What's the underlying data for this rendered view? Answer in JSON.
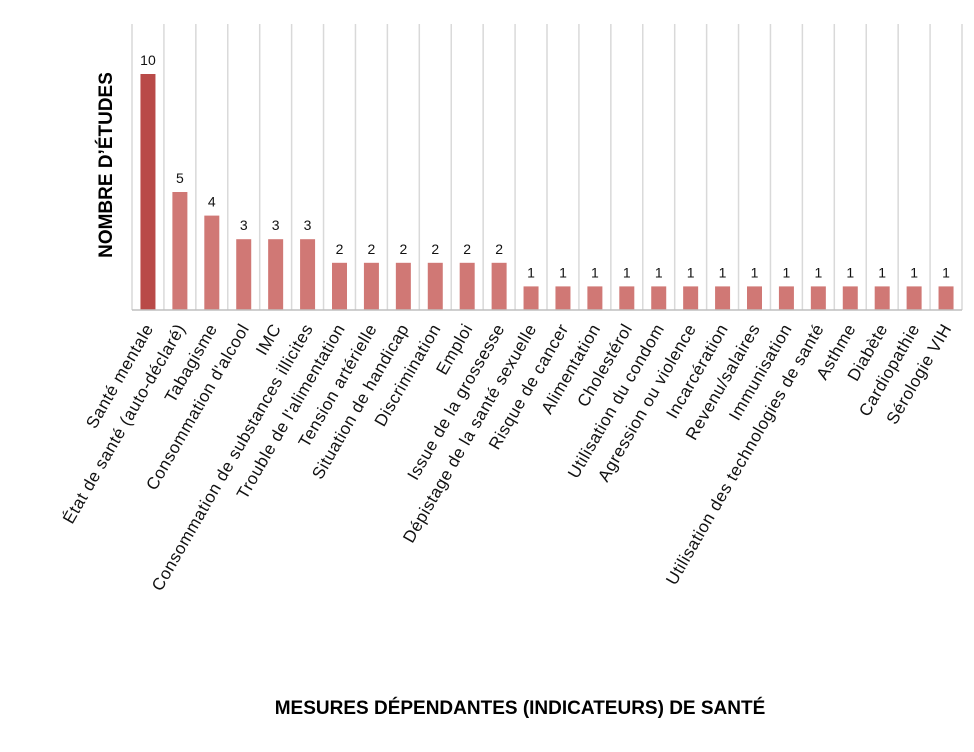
{
  "chart_data": {
    "type": "bar",
    "title": "",
    "xlabel": "MESURES DÉPENDANTES (INDICATEURS) DE SANTÉ",
    "ylabel": "NOMBRE D’ÉTUDES",
    "ylim": [
      0,
      10
    ],
    "grid": true,
    "legend": "none",
    "colors": {
      "highlight": "#b94a48",
      "bar": "#d07875",
      "grid": "#d9d9d9",
      "axis": "#bfbfbf"
    },
    "categories": [
      "Santé mentale",
      "État de santé (auto-déclaré)",
      "Tabagisme",
      "Consommation d'alcool",
      "IMC",
      "Consommation de substances illicites",
      "Trouble de l'alimentation",
      "Tension artérielle",
      "Situation de handicap",
      "Discrimination",
      "Emploi",
      "Issue de la grossesse",
      "Dépistage de la santé sexuelle",
      "Risque de cancer",
      "Alimentation",
      "Cholestérol",
      "Utilisation du condom",
      "Agression ou violence",
      "Incarcération",
      "Revenu/salaires",
      "Immunisation",
      "Utilisation des technologies de santé",
      "Asthme",
      "Diabète",
      "Cardiopathie",
      "Sérologie VIH"
    ],
    "values": [
      10,
      5,
      4,
      3,
      3,
      3,
      2,
      2,
      2,
      2,
      2,
      2,
      1,
      1,
      1,
      1,
      1,
      1,
      1,
      1,
      1,
      1,
      1,
      1,
      1,
      1
    ],
    "data_labels": [
      "10",
      "5",
      "4",
      "3",
      "3",
      "3",
      "2",
      "2",
      "2",
      "2",
      "2",
      "2",
      "1",
      "1",
      "1",
      "1",
      "1",
      "1",
      "1",
      "1",
      "1",
      "1",
      "1",
      "1",
      "1",
      "1"
    ]
  }
}
